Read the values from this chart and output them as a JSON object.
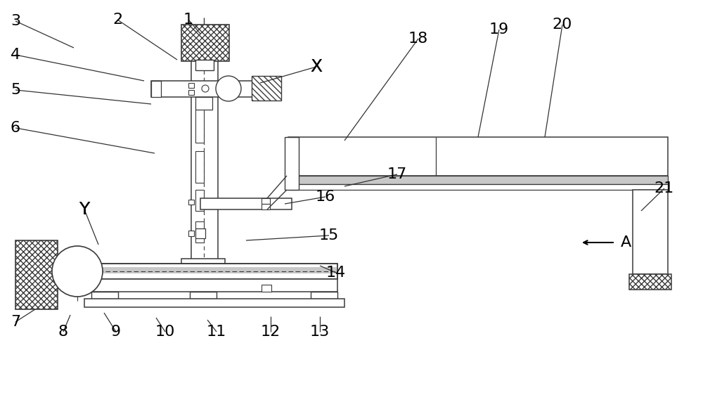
{
  "bg_color": "#ffffff",
  "lc": "#3a3a3a",
  "lc2": "#555555",
  "gray_fill": "#c8c8c8",
  "light_gray": "#e0e0e0",
  "label_fontsize": 16,
  "axis_label_fontsize": 18,
  "leaders": {
    "3": [
      22,
      30,
      105,
      68
    ],
    "2": [
      167,
      28,
      252,
      85
    ],
    "1": [
      268,
      28,
      285,
      48
    ],
    "4": [
      22,
      78,
      205,
      115
    ],
    "5": [
      22,
      128,
      215,
      148
    ],
    "6": [
      22,
      182,
      220,
      218
    ],
    "X": [
      450,
      95,
      370,
      118
    ],
    "18": [
      595,
      55,
      490,
      200
    ],
    "19": [
      710,
      42,
      680,
      195
    ],
    "20": [
      800,
      35,
      775,
      195
    ],
    "17": [
      565,
      248,
      490,
      265
    ],
    "21": [
      945,
      268,
      912,
      300
    ],
    "16": [
      463,
      280,
      405,
      290
    ],
    "15": [
      468,
      335,
      350,
      342
    ],
    "14": [
      478,
      388,
      455,
      378
    ],
    "13": [
      455,
      472,
      455,
      450
    ],
    "12": [
      385,
      472,
      385,
      450
    ],
    "11": [
      308,
      472,
      295,
      455
    ],
    "10": [
      235,
      472,
      222,
      452
    ],
    "9": [
      165,
      472,
      148,
      445
    ],
    "8": [
      90,
      472,
      100,
      448
    ],
    "7": [
      22,
      458,
      50,
      440
    ],
    "Y": [
      120,
      298,
      140,
      348
    ]
  }
}
